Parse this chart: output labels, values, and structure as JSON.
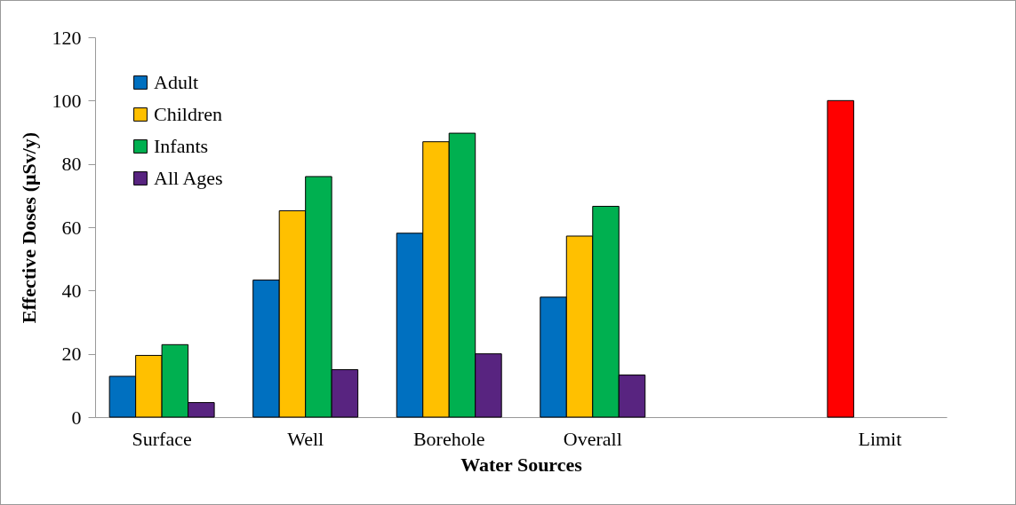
{
  "chart_data": {
    "type": "bar",
    "xlabel": "Water Sources",
    "ylabel": "Effective Doses (μSv/y)",
    "categories": [
      "Surface",
      "Well",
      "Borehole",
      "Overall",
      null,
      "Limit"
    ],
    "series": [
      {
        "name": "Adult",
        "color": "#0070c0",
        "colors": [
          "#0070c0",
          "#0070c0",
          "#0070c0",
          "#0070c0",
          null,
          "#ff0000"
        ],
        "values": [
          12.9,
          43.3,
          58.1,
          37.9,
          null,
          100
        ]
      },
      {
        "name": "Children",
        "color": "#ffc000",
        "values": [
          19.5,
          65.2,
          87.0,
          57.2,
          null,
          null
        ]
      },
      {
        "name": "Infants",
        "color": "#00b050",
        "values": [
          22.9,
          76.0,
          89.7,
          66.6,
          null,
          null
        ]
      },
      {
        "name": "All Ages",
        "color": "#582480",
        "values": [
          4.6,
          15.0,
          20.0,
          13.3,
          null,
          null
        ]
      }
    ],
    "ylim": [
      0,
      120
    ],
    "yticks": [
      0,
      20,
      40,
      60,
      80,
      100,
      120
    ],
    "grid": false,
    "legend": "top left"
  }
}
